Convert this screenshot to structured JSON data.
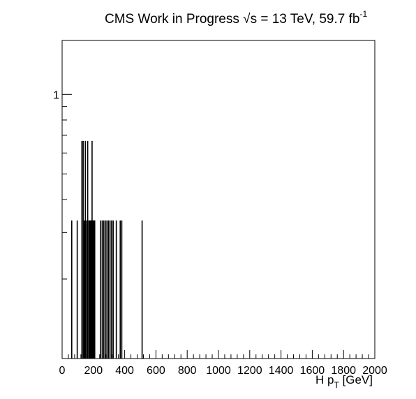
{
  "title": {
    "experiment": "CMS Work in Progress",
    "sqrt_s": "√s",
    "energy": "= 13 TeV, 59.7 fb",
    "lumi_exponent": "-1"
  },
  "axes": {
    "xlabel_main": "H p",
    "xlabel_sub": "T",
    "xlabel_unit": "[GeV]",
    "ylabel": ""
  },
  "chart_data": {
    "type": "bar",
    "title": "CMS Work in Progress √s = 13 TeV, 59.7 fb-1",
    "xlabel": "H pT [GeV]",
    "ylabel": "",
    "xlim": [
      0,
      2000
    ],
    "ylim": [
      0.1,
      1.6
    ],
    "yscale": "log",
    "x_ticks": [
      "0",
      "200",
      "400",
      "600",
      "800",
      "1000",
      "1200",
      "1400",
      "1600",
      "1800",
      "2000"
    ],
    "y_ticks": [
      "1"
    ],
    "grid": false,
    "bin_width": 4,
    "bins": [
      {
        "x": 60,
        "y": 0.333
      },
      {
        "x": 95,
        "y": 0.333
      },
      {
        "x": 125,
        "y": 0.667
      },
      {
        "x": 133,
        "y": 0.667
      },
      {
        "x": 140,
        "y": 0.333
      },
      {
        "x": 147,
        "y": 0.667
      },
      {
        "x": 155,
        "y": 0.333
      },
      {
        "x": 162,
        "y": 0.667
      },
      {
        "x": 170,
        "y": 0.333
      },
      {
        "x": 175,
        "y": 0.333
      },
      {
        "x": 178,
        "y": 0.333
      },
      {
        "x": 182,
        "y": 0.333
      },
      {
        "x": 186,
        "y": 0.333
      },
      {
        "x": 190,
        "y": 0.667
      },
      {
        "x": 193,
        "y": 0.333
      },
      {
        "x": 197,
        "y": 0.333
      },
      {
        "x": 200,
        "y": 0.333
      },
      {
        "x": 204,
        "y": 0.333
      },
      {
        "x": 207,
        "y": 0.333
      },
      {
        "x": 245,
        "y": 0.333
      },
      {
        "x": 255,
        "y": 0.333
      },
      {
        "x": 265,
        "y": 0.333
      },
      {
        "x": 275,
        "y": 0.333
      },
      {
        "x": 285,
        "y": 0.333
      },
      {
        "x": 295,
        "y": 0.333
      },
      {
        "x": 305,
        "y": 0.333
      },
      {
        "x": 315,
        "y": 0.333
      },
      {
        "x": 325,
        "y": 0.333
      },
      {
        "x": 345,
        "y": 0.333
      },
      {
        "x": 370,
        "y": 0.333
      },
      {
        "x": 380,
        "y": 0.333
      },
      {
        "x": 510,
        "y": 0.333
      }
    ]
  }
}
